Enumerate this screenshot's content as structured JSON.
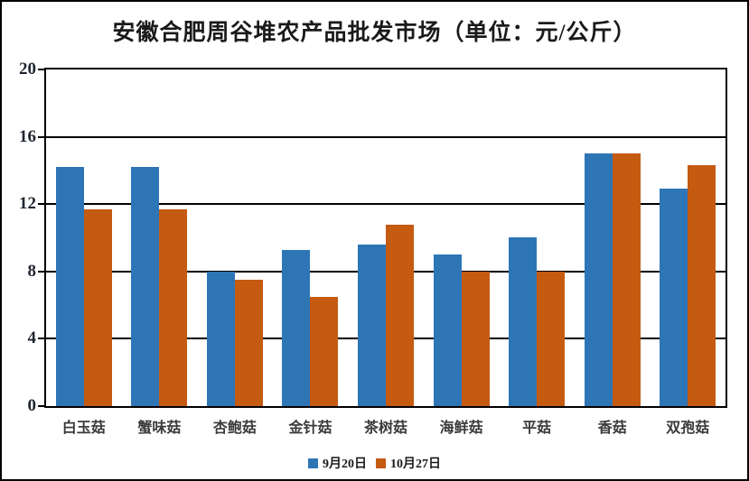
{
  "title": "安徽合肥周谷堆农产品批发市场（单位：元/公斤）",
  "colors": {
    "series1": "#2E75B6",
    "series2": "#C55A11",
    "axis": "#000000",
    "text": "#1a1a1a"
  },
  "chart_data": {
    "type": "bar",
    "title": "安徽合肥周谷堆农产品批发市场（单位：元/公斤）",
    "categories": [
      "白玉菇",
      "蟹味菇",
      "杏鲍菇",
      "金针菇",
      "茶树菇",
      "海鲜菇",
      "平菇",
      "香菇",
      "双孢菇"
    ],
    "series": [
      {
        "name": "9月20日",
        "color": "#2E75B6",
        "values": [
          14.2,
          14.2,
          8.0,
          9.3,
          9.6,
          9.0,
          10.0,
          15.0,
          12.9
        ]
      },
      {
        "name": "10月27日",
        "color": "#C55A11",
        "values": [
          11.7,
          11.7,
          7.5,
          6.5,
          10.8,
          8.0,
          8.0,
          15.0,
          14.3
        ]
      }
    ],
    "xlabel": "",
    "ylabel": "",
    "ylim": [
      0,
      20
    ],
    "yticks": [
      0,
      4,
      8,
      12,
      16,
      20
    ],
    "grid": true,
    "legend_position": "bottom"
  }
}
